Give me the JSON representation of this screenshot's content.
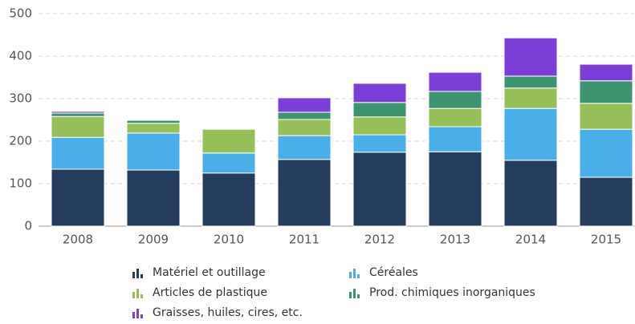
{
  "chart_data": {
    "type": "stacked_bar",
    "categories": [
      "2008",
      "2009",
      "2010",
      "2011",
      "2012",
      "2013",
      "2014",
      "2015"
    ],
    "series": [
      {
        "name": "Matériel et outillage",
        "color": "#243d5c",
        "values": [
          134,
          132,
          125,
          157,
          174,
          175,
          155,
          115
        ]
      },
      {
        "name": "Céréales",
        "color": "#4aaee8",
        "values": [
          75,
          87,
          47,
          56,
          41,
          59,
          122,
          113
        ]
      },
      {
        "name": "Articles de plastique",
        "color": "#96bf5a",
        "values": [
          49,
          23,
          56,
          38,
          42,
          43,
          48,
          61
        ]
      },
      {
        "name": "Prod. chimiques inorganiques",
        "color": "#3f9470",
        "values": [
          8,
          7,
          0,
          17,
          34,
          40,
          28,
          53
        ]
      },
      {
        "name": "Graisses, huiles, cires, etc.",
        "color": "#7b3fd8",
        "values": [
          4,
          0,
          0,
          34,
          45,
          45,
          90,
          39
        ]
      }
    ],
    "ylim": [
      0,
      500
    ],
    "yticks": [
      0,
      100,
      200,
      300,
      400,
      500
    ],
    "grid": true
  }
}
